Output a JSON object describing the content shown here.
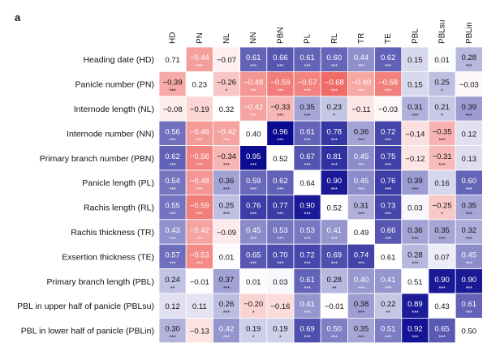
{
  "panel_label": "a",
  "chart_data": {
    "type": "heatmap",
    "columns": [
      "HD",
      "PN",
      "NL",
      "NN",
      "PBN",
      "PL",
      "RL",
      "TR",
      "TE",
      "PBL",
      "PBLsu",
      "PBLin"
    ],
    "rows": [
      "Heading date (HD)",
      "Panicle number (PN)",
      "Internode length (NL)",
      "Internode number (NN)",
      "Primary branch number (PBN)",
      "Panicle length (PL)",
      "Rachis length (RL)",
      "Rachis thickness (TR)",
      "Exsertion thickness (TE)",
      "Primary branch length (PBL)",
      "PBL in upper half of panicle (PBLsu)",
      "PBL in lower half of panicle (PBLin)"
    ],
    "values": [
      [
        "0.71",
        "−0.44",
        "−0.07",
        "0.61",
        "0.66",
        "0.61",
        "0.60",
        "0.44",
        "0.62",
        "0.15",
        "0.01",
        "0.28"
      ],
      [
        "−0.39",
        "0.23",
        "−0.26",
        "−0.48",
        "−0.59",
        "−0.57",
        "−0.68",
        "−0.40",
        "−0.58",
        "0.15",
        "0.25",
        "−0.03"
      ],
      [
        "−0.08",
        "−0.19",
        "0.32",
        "−0.42",
        "−0.33",
        "0.35",
        "0.23",
        "−0.11",
        "−0.03",
        "0.31",
        "0.21",
        "0.39"
      ],
      [
        "0.56",
        "−0.46",
        "−0.42",
        "0.40",
        "0.96",
        "0.61",
        "0.78",
        "0.36",
        "0.72",
        "−0.14",
        "−0.35",
        "0.12"
      ],
      [
        "0.62",
        "−0.56",
        "−0.34",
        "0.95",
        "0.52",
        "0.67",
        "0.81",
        "0.45",
        "0.75",
        "−0.12",
        "−0.31",
        "0.13"
      ],
      [
        "0.54",
        "−0.48",
        "0.36",
        "0.59",
        "0.62",
        "0.64",
        "0.90",
        "0.45",
        "0.76",
        "0.39",
        "0.16",
        "0.60"
      ],
      [
        "0.55",
        "−0.59",
        "0.25",
        "0.76",
        "0.77",
        "0.90",
        "0.52",
        "0.31",
        "0.73",
        "0.03",
        "−0.25",
        "0.35"
      ],
      [
        "0.43",
        "−0.42",
        "−0.09",
        "0.45",
        "0.53",
        "0.53",
        "0.41",
        "0.49",
        "0.66",
        "0.36",
        "0.35",
        "0.32"
      ],
      [
        "0.57",
        "−0.53",
        "0.01",
        "0.65",
        "0.70",
        "0.72",
        "0.69",
        "0.74",
        "0.61",
        "0.28",
        "0.07",
        "0.45"
      ],
      [
        "0.24",
        "−0.01",
        "0.37",
        "0.01",
        "0.03",
        "0.61",
        "0.28",
        "0.40",
        "0.41",
        "0.51",
        "0.90",
        "0.90"
      ],
      [
        "0.12",
        "0.11",
        "0.26",
        "−0.20",
        "−0.16",
        "0.41",
        "−0.01",
        "0.38",
        "0.22",
        "0.89",
        "0.43",
        "0.61"
      ],
      [
        "0.30",
        "−0.13",
        "0.42",
        "0.19",
        "0.19",
        "0.69",
        "0.50",
        "0.35",
        "0.51",
        "0.92",
        "0.65",
        "0.50"
      ]
    ],
    "significance": [
      [
        "",
        "***",
        "",
        "***",
        "***",
        "***",
        "***",
        "***",
        "***",
        "",
        "",
        "***"
      ],
      [
        "***",
        "",
        "*",
        "***",
        "***",
        "***",
        "***",
        "***",
        "***",
        "",
        "*",
        ""
      ],
      [
        "",
        "",
        "",
        "***",
        "***",
        "***",
        "*",
        "",
        "",
        "***",
        "*",
        "***"
      ],
      [
        "***",
        "***",
        "***",
        "",
        "***",
        "***",
        "***",
        "***",
        "***",
        "",
        "***",
        ""
      ],
      [
        "***",
        "***",
        "***",
        "***",
        "",
        "***",
        "***",
        "***",
        "***",
        "",
        "***",
        ""
      ],
      [
        "***",
        "***",
        "***",
        "***",
        "***",
        "",
        "***",
        "***",
        "***",
        "***",
        "",
        "***"
      ],
      [
        "***",
        "***",
        "***",
        "***",
        "***",
        "***",
        "",
        "***",
        "***",
        "",
        "*",
        "***"
      ],
      [
        "***",
        "***",
        "",
        "***",
        "***",
        "***",
        "***",
        "",
        "***",
        "***",
        "***",
        "***"
      ],
      [
        "***",
        "***",
        "",
        "***",
        "***",
        "***",
        "***",
        "***",
        "",
        "***",
        "",
        "***"
      ],
      [
        "**",
        "",
        "***",
        "",
        "",
        "***",
        "**",
        "***",
        "***",
        "",
        "***",
        "***"
      ],
      [
        "",
        "",
        "***",
        "*",
        "",
        "***",
        "",
        "***",
        "**",
        "***",
        "",
        "***"
      ],
      [
        "***",
        "",
        "***",
        "*",
        "*",
        "***",
        "***",
        "***",
        "***",
        "***",
        "***",
        ""
      ]
    ],
    "color_scale": {
      "negative": "#e8251f",
      "zero": "#ffffff",
      "positive": "#00008b",
      "range": [
        -1,
        1
      ]
    },
    "diagonal_color": "#ffffff"
  }
}
